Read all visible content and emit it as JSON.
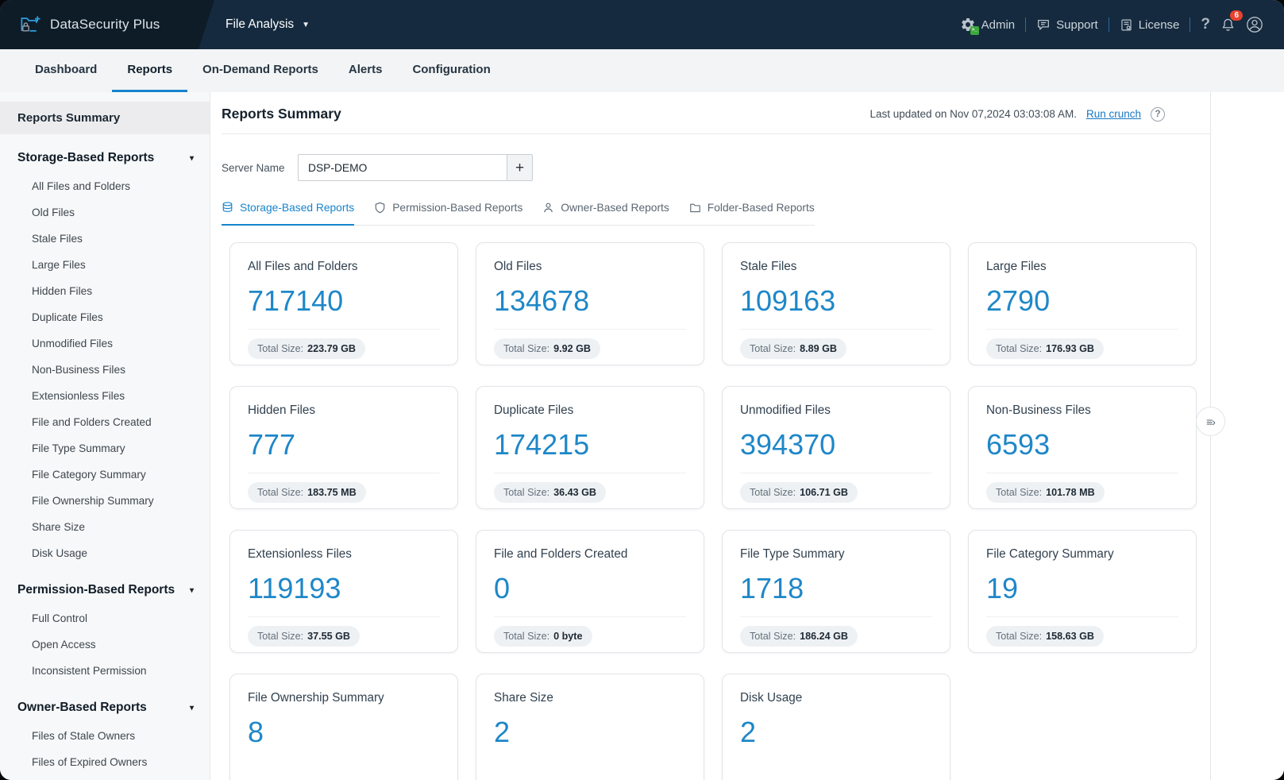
{
  "topbar": {
    "product_name": "DataSecurity Plus",
    "module_name": "File Analysis",
    "admin_label": "Admin",
    "support_label": "Support",
    "license_label": "License",
    "help_label": "?",
    "notification_count": "6"
  },
  "nav_tabs": [
    {
      "label": "Dashboard",
      "active": false
    },
    {
      "label": "Reports",
      "active": true
    },
    {
      "label": "On-Demand Reports",
      "active": false
    },
    {
      "label": "Alerts",
      "active": false
    },
    {
      "label": "Configuration",
      "active": false
    }
  ],
  "sidebar": {
    "summary_label": "Reports Summary",
    "groups": [
      {
        "label": "Storage-Based Reports",
        "items": [
          "All Files and Folders",
          "Old Files",
          "Stale Files",
          "Large Files",
          "Hidden Files",
          "Duplicate Files",
          "Unmodified Files",
          "Non-Business Files",
          "Extensionless Files",
          "File and Folders Created",
          "File Type Summary",
          "File Category Summary",
          "File Ownership Summary",
          "Share Size",
          "Disk Usage"
        ]
      },
      {
        "label": "Permission-Based Reports",
        "items": [
          "Full Control",
          "Open Access",
          "Inconsistent Permission"
        ]
      },
      {
        "label": "Owner-Based Reports",
        "items": [
          "Files of Stale Owners",
          "Files of Expired Owners"
        ]
      }
    ]
  },
  "content": {
    "title": "Reports Summary",
    "last_updated": "Last updated on Nov 07,2024 03:03:08 AM.",
    "run_crunch_label": "Run crunch",
    "server_label": "Server Name",
    "server_value": "DSP-DEMO",
    "add_button_label": "+"
  },
  "report_tabs": [
    {
      "label": "Storage-Based Reports",
      "icon": "database-icon",
      "active": true
    },
    {
      "label": "Permission-Based Reports",
      "icon": "shield-icon",
      "active": false
    },
    {
      "label": "Owner-Based Reports",
      "icon": "user-icon",
      "active": false
    },
    {
      "label": "Folder-Based Reports",
      "icon": "folder-icon",
      "active": false
    }
  ],
  "size_label": "Total Size:",
  "cards": [
    {
      "title": "All Files and Folders",
      "count": "717140",
      "total_size": "223.79 GB"
    },
    {
      "title": "Old Files",
      "count": "134678",
      "total_size": "9.92 GB"
    },
    {
      "title": "Stale Files",
      "count": "109163",
      "total_size": "8.89 GB"
    },
    {
      "title": "Large Files",
      "count": "2790",
      "total_size": "176.93 GB"
    },
    {
      "title": "Hidden Files",
      "count": "777",
      "total_size": "183.75 MB"
    },
    {
      "title": "Duplicate Files",
      "count": "174215",
      "total_size": "36.43 GB"
    },
    {
      "title": "Unmodified Files",
      "count": "394370",
      "total_size": "106.71 GB"
    },
    {
      "title": "Non-Business Files",
      "count": "6593",
      "total_size": "101.78 MB"
    },
    {
      "title": "Extensionless Files",
      "count": "119193",
      "total_size": "37.55 GB"
    },
    {
      "title": "File and Folders Created",
      "count": "0",
      "total_size": "0 byte"
    },
    {
      "title": "File Type Summary",
      "count": "1718",
      "total_size": "186.24 GB"
    },
    {
      "title": "File Category Summary",
      "count": "19",
      "total_size": "158.63 GB"
    },
    {
      "title": "File Ownership Summary",
      "count": "8",
      "total_size": null
    },
    {
      "title": "Share Size",
      "count": "2",
      "total_size": null
    },
    {
      "title": "Disk Usage",
      "count": "2",
      "total_size": null
    }
  ],
  "colors": {
    "accent_blue": "#1684cd",
    "count_blue": "#1e87c8",
    "badge_red": "#e8432e"
  }
}
